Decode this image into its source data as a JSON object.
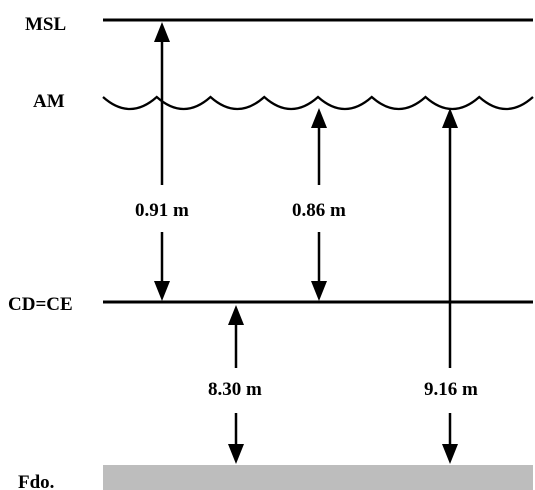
{
  "levels": {
    "msl": "MSL",
    "am": "AM",
    "cd_ce": "CD=CE",
    "fdo": "Fdo."
  },
  "measurements": {
    "msl_to_cd": "0.91 m",
    "am_to_cd": "0.86 m",
    "cd_to_fdo": "8.30 m",
    "am_to_fdo": "9.16 m"
  },
  "colors": {
    "lines": "#000000",
    "seabed": "#bdbdbd"
  }
}
